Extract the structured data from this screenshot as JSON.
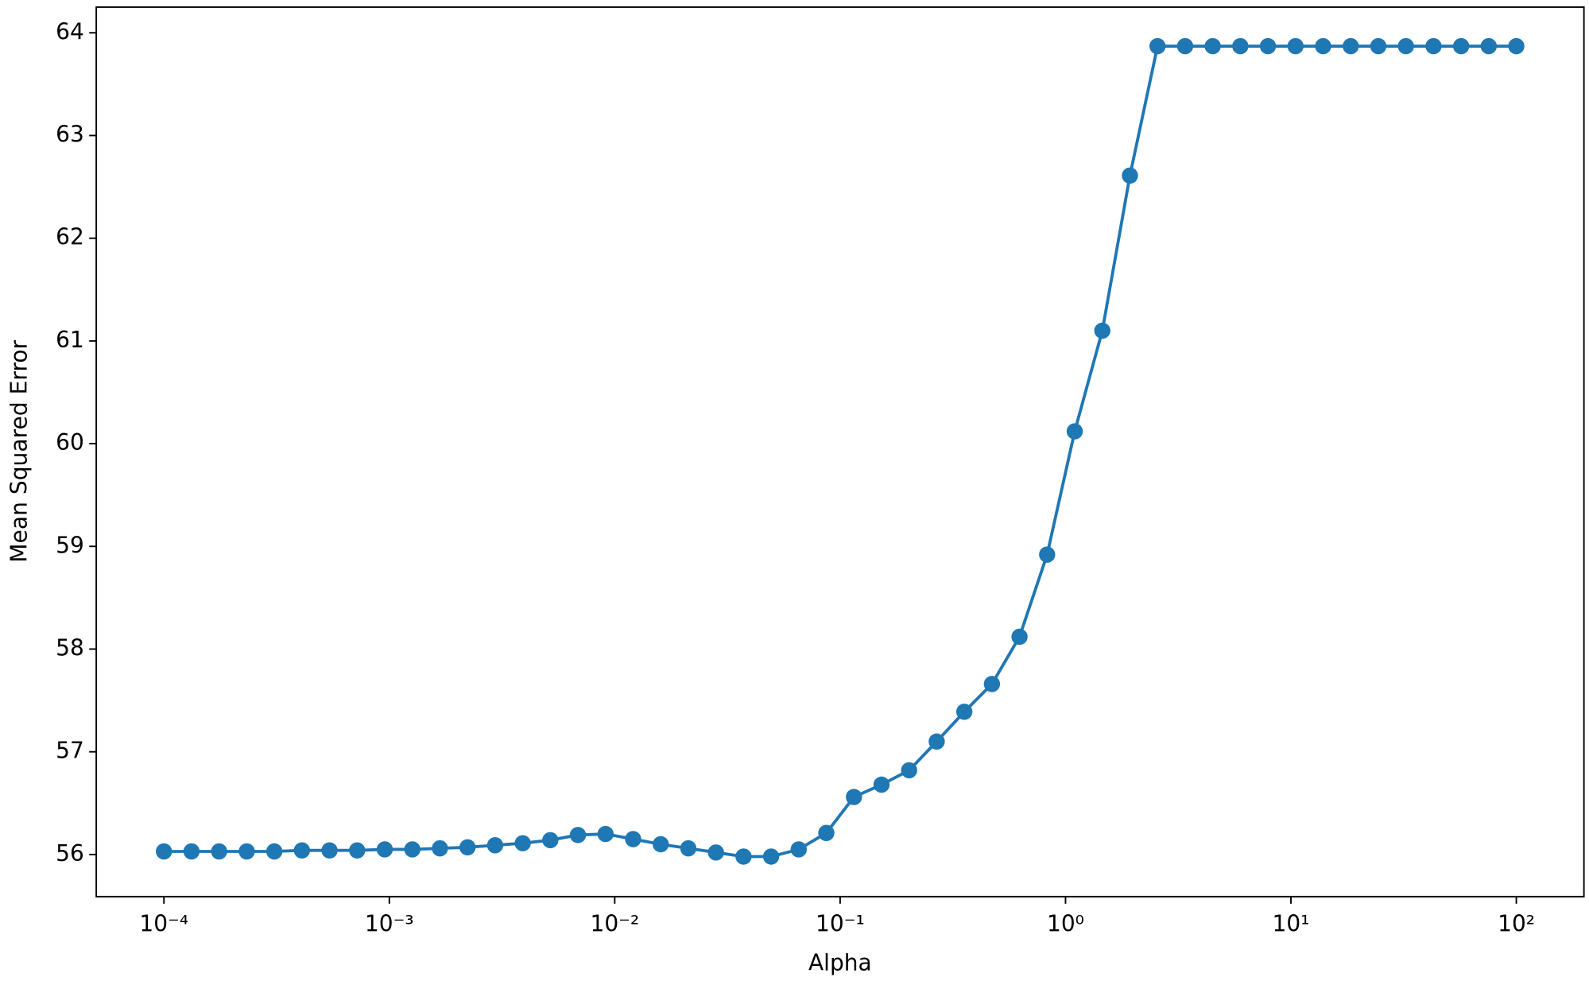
{
  "chart_data": {
    "type": "line",
    "x_label": "Alpha",
    "y_label": "Mean Squared Error",
    "xscale": "log",
    "xlim": [
      5.01e-05,
      199.5
    ],
    "ylim": [
      55.59,
      64.25
    ],
    "xticks": [
      {
        "value": 0.0001,
        "label": "10⁻⁴"
      },
      {
        "value": 0.001,
        "label": "10⁻³"
      },
      {
        "value": 0.01,
        "label": "10⁻²"
      },
      {
        "value": 0.1,
        "label": "10⁻¹"
      },
      {
        "value": 1,
        "label": "10⁰"
      },
      {
        "value": 10,
        "label": "10¹"
      },
      {
        "value": 100,
        "label": "10²"
      }
    ],
    "yticks": [
      56,
      57,
      58,
      59,
      60,
      61,
      62,
      63,
      64
    ],
    "grid": false,
    "x": [
      0.0001,
      0.00013257,
      0.00017575,
      0.000233,
      0.00030888,
      0.00040949,
      0.00054287,
      0.00071969,
      0.0009541,
      0.0012649,
      0.0016768,
      0.002223,
      0.0029471,
      0.0039069,
      0.0051795,
      0.0068665,
      0.009103,
      0.012068,
      0.015999,
      0.02121,
      0.028118,
      0.037276,
      0.049417,
      0.065513,
      0.086851,
      0.11514,
      0.15264,
      0.20236,
      0.26827,
      0.35565,
      0.47149,
      0.62506,
      0.82864,
      1.0985,
      1.4563,
      1.9307,
      2.5595,
      3.3932,
      4.4984,
      5.9636,
      7.906,
      10.481,
      13.895,
      18.421,
      24.421,
      32.375,
      42.919,
      56.898,
      75.431,
      100
    ],
    "series": [
      {
        "name": "MSE",
        "color": "#1f77b4",
        "values": [
          56.03,
          56.03,
          56.03,
          56.03,
          56.03,
          56.04,
          56.04,
          56.04,
          56.05,
          56.05,
          56.06,
          56.07,
          56.09,
          56.11,
          56.14,
          56.19,
          56.2,
          56.15,
          56.1,
          56.06,
          56.02,
          55.98,
          55.98,
          56.05,
          56.21,
          56.56,
          56.68,
          56.82,
          57.1,
          57.39,
          57.66,
          58.12,
          58.92,
          60.12,
          61.1,
          62.61,
          63.87,
          63.87,
          63.87,
          63.87,
          63.87,
          63.87,
          63.87,
          63.87,
          63.87,
          63.87,
          63.87,
          63.87,
          63.87,
          63.87
        ]
      }
    ]
  }
}
